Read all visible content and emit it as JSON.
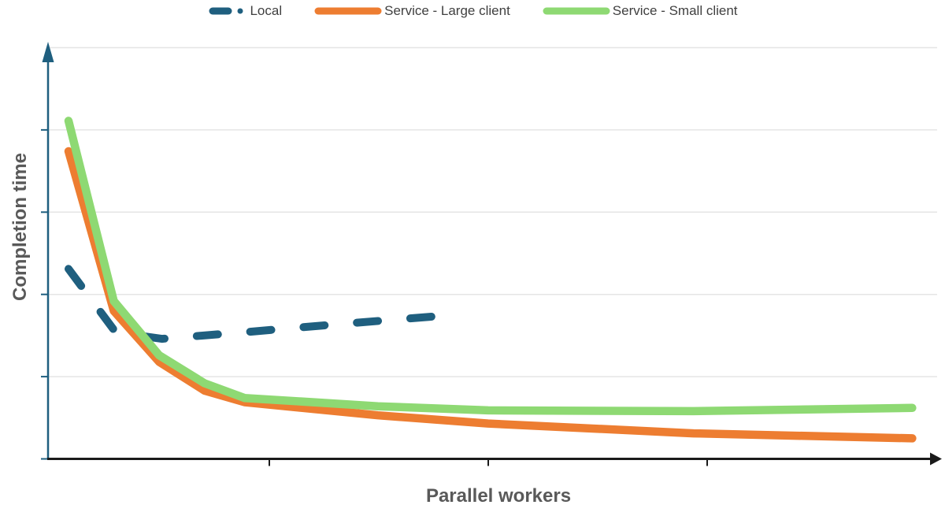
{
  "chart_data": {
    "type": "line",
    "title": "",
    "xlabel": "Parallel workers",
    "ylabel": "Completion time",
    "legend_position": "top",
    "grid": "horizontal only",
    "axes": {
      "x_color": "#1A1A1A",
      "y_color": "#1F5F7F",
      "gridline_color": "#E5E5E5",
      "y_gridlines": 5,
      "x_tick_count": 3,
      "tick_labels": "none (axes are unlabeled)"
    },
    "note": "No numeric axis labels are shown. Point values are estimates: x = fraction of axis length, y = completion time in gridline units (1 unit = one gridline spacing above the x-axis).",
    "series": [
      {
        "name": "Local",
        "color": "#1F5F7F",
        "style": "dashed",
        "points": [
          [
            0.023,
            2.31
          ],
          [
            0.076,
            1.54
          ],
          [
            0.128,
            1.46
          ],
          [
            0.221,
            1.54
          ],
          [
            0.318,
            1.63
          ],
          [
            0.444,
            1.74
          ]
        ]
      },
      {
        "name": "Service - Large client",
        "color": "#ED7D31",
        "style": "solid",
        "points": [
          [
            0.023,
            3.74
          ],
          [
            0.074,
            1.8
          ],
          [
            0.125,
            1.18
          ],
          [
            0.176,
            0.83
          ],
          [
            0.221,
            0.69
          ],
          [
            0.371,
            0.53
          ],
          [
            0.495,
            0.43
          ],
          [
            0.726,
            0.31
          ],
          [
            0.972,
            0.25
          ]
        ]
      },
      {
        "name": "Service - Small client",
        "color": "#8ED973",
        "style": "solid",
        "points": [
          [
            0.023,
            4.11
          ],
          [
            0.074,
            1.92
          ],
          [
            0.125,
            1.26
          ],
          [
            0.176,
            0.92
          ],
          [
            0.221,
            0.74
          ],
          [
            0.371,
            0.64
          ],
          [
            0.495,
            0.59
          ],
          [
            0.726,
            0.58
          ],
          [
            0.972,
            0.62
          ]
        ]
      }
    ]
  }
}
